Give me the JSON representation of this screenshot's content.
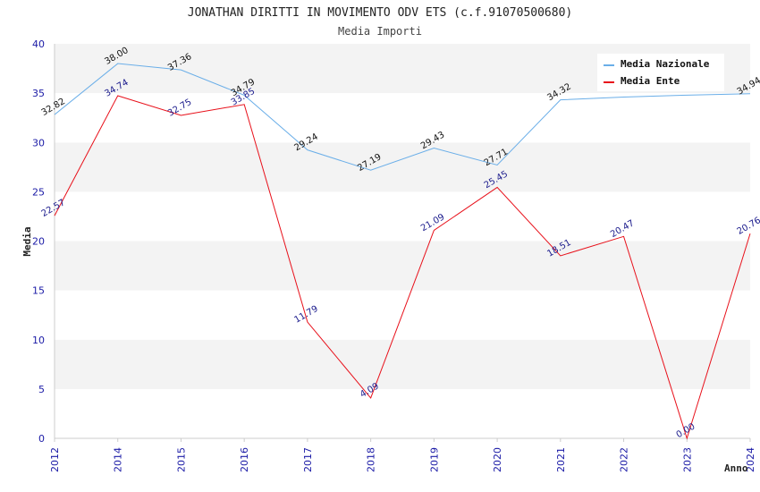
{
  "chart_data": {
    "type": "line",
    "title": "JONATHAN DIRITTI IN MOVIMENTO ODV ETS (c.f.91070500680)",
    "subtitle": "Media Importi",
    "xlabel": "Anno",
    "ylabel": "Media",
    "ylim": [
      0,
      40
    ],
    "yticks": [
      0,
      5,
      10,
      15,
      20,
      25,
      30,
      35,
      40
    ],
    "categories": [
      "2012",
      "2014",
      "2015",
      "2016",
      "2017",
      "2018",
      "2019",
      "2020",
      "2021",
      "2022",
      "2023",
      "2024"
    ],
    "legend_position": "top-right",
    "grid": true,
    "series": [
      {
        "name": "Media Nazionale",
        "color": "#6aaee8",
        "values": [
          32.82,
          38.0,
          37.36,
          34.79,
          29.24,
          27.19,
          29.43,
          27.71,
          34.32,
          34.6,
          34.8,
          34.94
        ],
        "labels": [
          "32.82",
          "38.00",
          "37.36",
          "34.79",
          "29.24",
          "27.19",
          "29.43",
          "27.71",
          "34.32",
          "",
          "",
          "34.94"
        ]
      },
      {
        "name": "Media Ente",
        "color": "#e8101a",
        "values": [
          22.57,
          34.74,
          32.75,
          33.85,
          11.79,
          4.09,
          21.09,
          25.45,
          18.51,
          20.47,
          0.0,
          20.76
        ],
        "labels": [
          "22.57",
          "34.74",
          "32.75",
          "33.85",
          "11.79",
          "4.09",
          "21.09",
          "25.45",
          "18.51",
          "20.47",
          "0.00",
          "20.76"
        ]
      }
    ]
  }
}
